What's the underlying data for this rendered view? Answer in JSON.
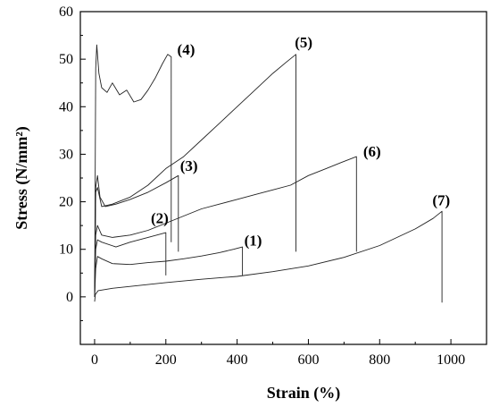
{
  "chart_data": {
    "type": "line",
    "title": "",
    "xlabel": "Strain (%)",
    "ylabel": "Stress (N/mm²)",
    "xlim": [
      -40,
      1100
    ],
    "ylim": [
      -10,
      60
    ],
    "xticks": [
      0,
      200,
      400,
      600,
      800,
      1000
    ],
    "yticks": [
      0,
      10,
      20,
      30,
      40,
      50,
      60
    ],
    "grid": false,
    "legend": "none",
    "series": [
      {
        "name": "(1)",
        "points": [
          [
            0,
            0
          ],
          [
            3,
            6
          ],
          [
            8,
            8.5
          ],
          [
            20,
            8
          ],
          [
            50,
            7
          ],
          [
            100,
            6.8
          ],
          [
            150,
            7.2
          ],
          [
            200,
            7.5
          ],
          [
            250,
            8
          ],
          [
            300,
            8.6
          ],
          [
            350,
            9.3
          ],
          [
            390,
            10
          ],
          [
            415,
            10.5
          ]
        ],
        "break": [
          415,
          4.5
        ],
        "label_pos": [
          420,
          10.8
        ]
      },
      {
        "name": "(2)",
        "points": [
          [
            0,
            0
          ],
          [
            3,
            10
          ],
          [
            8,
            12
          ],
          [
            20,
            11.5
          ],
          [
            60,
            10.5
          ],
          [
            100,
            11.5
          ],
          [
            150,
            12.5
          ],
          [
            200,
            13.5
          ]
        ],
        "break": [
          200,
          4.5
        ],
        "label_pos": [
          158,
          15.5
        ]
      },
      {
        "name": "(3)",
        "points": [
          [
            0,
            0
          ],
          [
            3,
            23
          ],
          [
            8,
            25.5
          ],
          [
            15,
            21
          ],
          [
            30,
            19
          ],
          [
            60,
            19.5
          ],
          [
            100,
            20.5
          ],
          [
            150,
            22
          ],
          [
            200,
            24
          ],
          [
            235,
            25.5
          ]
        ],
        "break": [
          235,
          9.5
        ],
        "label_pos": [
          240,
          26.5
        ]
      },
      {
        "name": "(4)",
        "points": [
          [
            0,
            0
          ],
          [
            3,
            48
          ],
          [
            6,
            53
          ],
          [
            12,
            47
          ],
          [
            20,
            44
          ],
          [
            35,
            43
          ],
          [
            50,
            45
          ],
          [
            70,
            42.5
          ],
          [
            90,
            43.5
          ],
          [
            110,
            41
          ],
          [
            130,
            41.5
          ],
          [
            150,
            43.5
          ],
          [
            170,
            46
          ],
          [
            190,
            49
          ],
          [
            205,
            51
          ],
          [
            215,
            50.5
          ]
        ],
        "break": [
          215,
          11.5
        ],
        "label_pos": [
          232,
          51
        ]
      },
      {
        "name": "(5)",
        "points": [
          [
            0,
            0
          ],
          [
            3,
            22
          ],
          [
            8,
            23
          ],
          [
            20,
            19
          ],
          [
            50,
            19.5
          ],
          [
            100,
            21
          ],
          [
            150,
            23.5
          ],
          [
            200,
            27
          ],
          [
            250,
            29.5
          ],
          [
            300,
            33
          ],
          [
            350,
            36.5
          ],
          [
            400,
            40
          ],
          [
            450,
            43.5
          ],
          [
            500,
            47
          ],
          [
            540,
            49.5
          ],
          [
            565,
            51
          ]
        ],
        "break": [
          565,
          9.5
        ],
        "label_pos": [
          562,
          52.5
        ]
      },
      {
        "name": "(6)",
        "points": [
          [
            0,
            0
          ],
          [
            3,
            13
          ],
          [
            8,
            15
          ],
          [
            20,
            13
          ],
          [
            50,
            12.5
          ],
          [
            100,
            13
          ],
          [
            150,
            14
          ],
          [
            200,
            15.5
          ],
          [
            250,
            17
          ],
          [
            300,
            18.5
          ],
          [
            350,
            19.5
          ],
          [
            400,
            20.5
          ],
          [
            450,
            21.5
          ],
          [
            500,
            22.5
          ],
          [
            550,
            23.5
          ],
          [
            600,
            25.5
          ],
          [
            650,
            27
          ],
          [
            700,
            28.5
          ],
          [
            735,
            29.5
          ]
        ],
        "break": [
          735,
          9.5
        ],
        "label_pos": [
          754,
          29.5
        ]
      },
      {
        "name": "(7)",
        "points": [
          [
            0,
            -1
          ],
          [
            2,
            0.5
          ],
          [
            10,
            1.3
          ],
          [
            50,
            1.8
          ],
          [
            100,
            2.2
          ],
          [
            200,
            3
          ],
          [
            300,
            3.7
          ],
          [
            400,
            4.3
          ],
          [
            500,
            5.3
          ],
          [
            600,
            6.5
          ],
          [
            700,
            8.3
          ],
          [
            800,
            10.8
          ],
          [
            900,
            14.3
          ],
          [
            950,
            16.5
          ],
          [
            975,
            18
          ]
        ],
        "break": [
          975,
          -1.2
        ],
        "label_pos": [
          948,
          19.3
        ]
      }
    ]
  }
}
